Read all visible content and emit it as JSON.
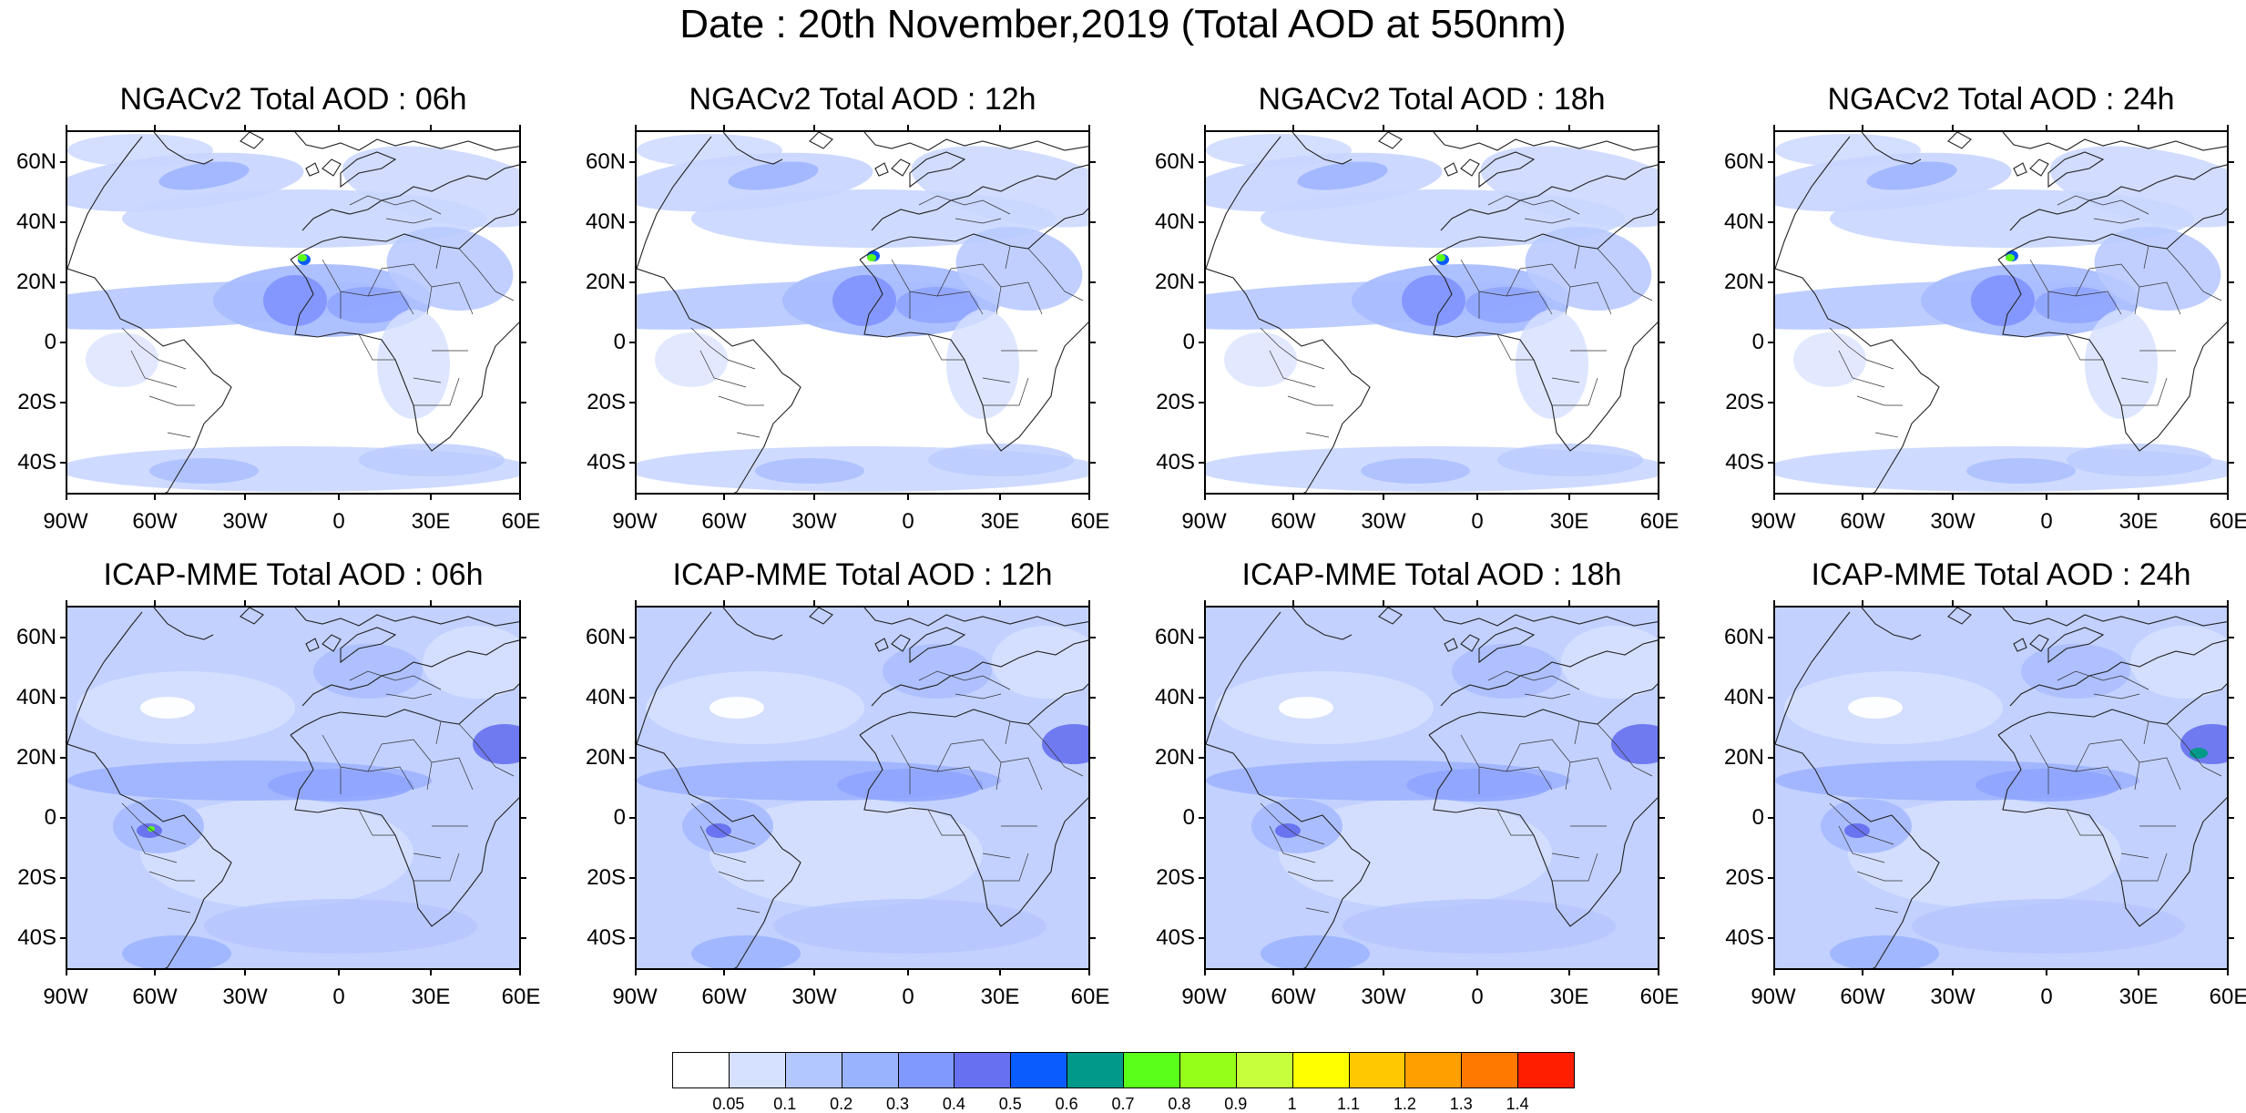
{
  "figure": {
    "title": "Date : 20th November,2019 (Total AOD at 550nm)"
  },
  "panels": [
    {
      "title": "NGACv2 Total AOD : 06h",
      "model": "NGACv2",
      "lead": "06h"
    },
    {
      "title": "NGACv2 Total AOD : 12h",
      "model": "NGACv2",
      "lead": "12h"
    },
    {
      "title": "NGACv2 Total AOD : 18h",
      "model": "NGACv2",
      "lead": "18h"
    },
    {
      "title": "NGACv2 Total AOD : 24h",
      "model": "NGACv2",
      "lead": "24h"
    },
    {
      "title": "ICAP-MME Total AOD : 06h",
      "model": "ICAP-MME",
      "lead": "06h"
    },
    {
      "title": "ICAP-MME Total AOD : 12h",
      "model": "ICAP-MME",
      "lead": "12h"
    },
    {
      "title": "ICAP-MME Total AOD : 18h",
      "model": "ICAP-MME",
      "lead": "18h"
    },
    {
      "title": "ICAP-MME Total AOD : 24h",
      "model": "ICAP-MME",
      "lead": "24h"
    }
  ],
  "axes": {
    "lat_labels": [
      "60N",
      "40N",
      "20N",
      "0",
      "20S",
      "40S"
    ],
    "lon_labels": [
      "90W",
      "60W",
      "30W",
      "0",
      "30E",
      "60E"
    ]
  },
  "colorbar": {
    "labels": [
      "0.05",
      "0.1",
      "0.2",
      "0.3",
      "0.4",
      "0.5",
      "0.6",
      "0.7",
      "0.8",
      "0.9",
      "1",
      "1.1",
      "1.2",
      "1.3",
      "1.4"
    ],
    "colors": [
      "#ffffff",
      "#d6e0ff",
      "#b3c7ff",
      "#99b3ff",
      "#8099ff",
      "#6670f0",
      "#0a5cff",
      "#00998a",
      "#5aff1a",
      "#96ff1a",
      "#c8ff3c",
      "#ffff00",
      "#ffc800",
      "#ff9f00",
      "#ff7800",
      "#ff1e00"
    ]
  }
}
